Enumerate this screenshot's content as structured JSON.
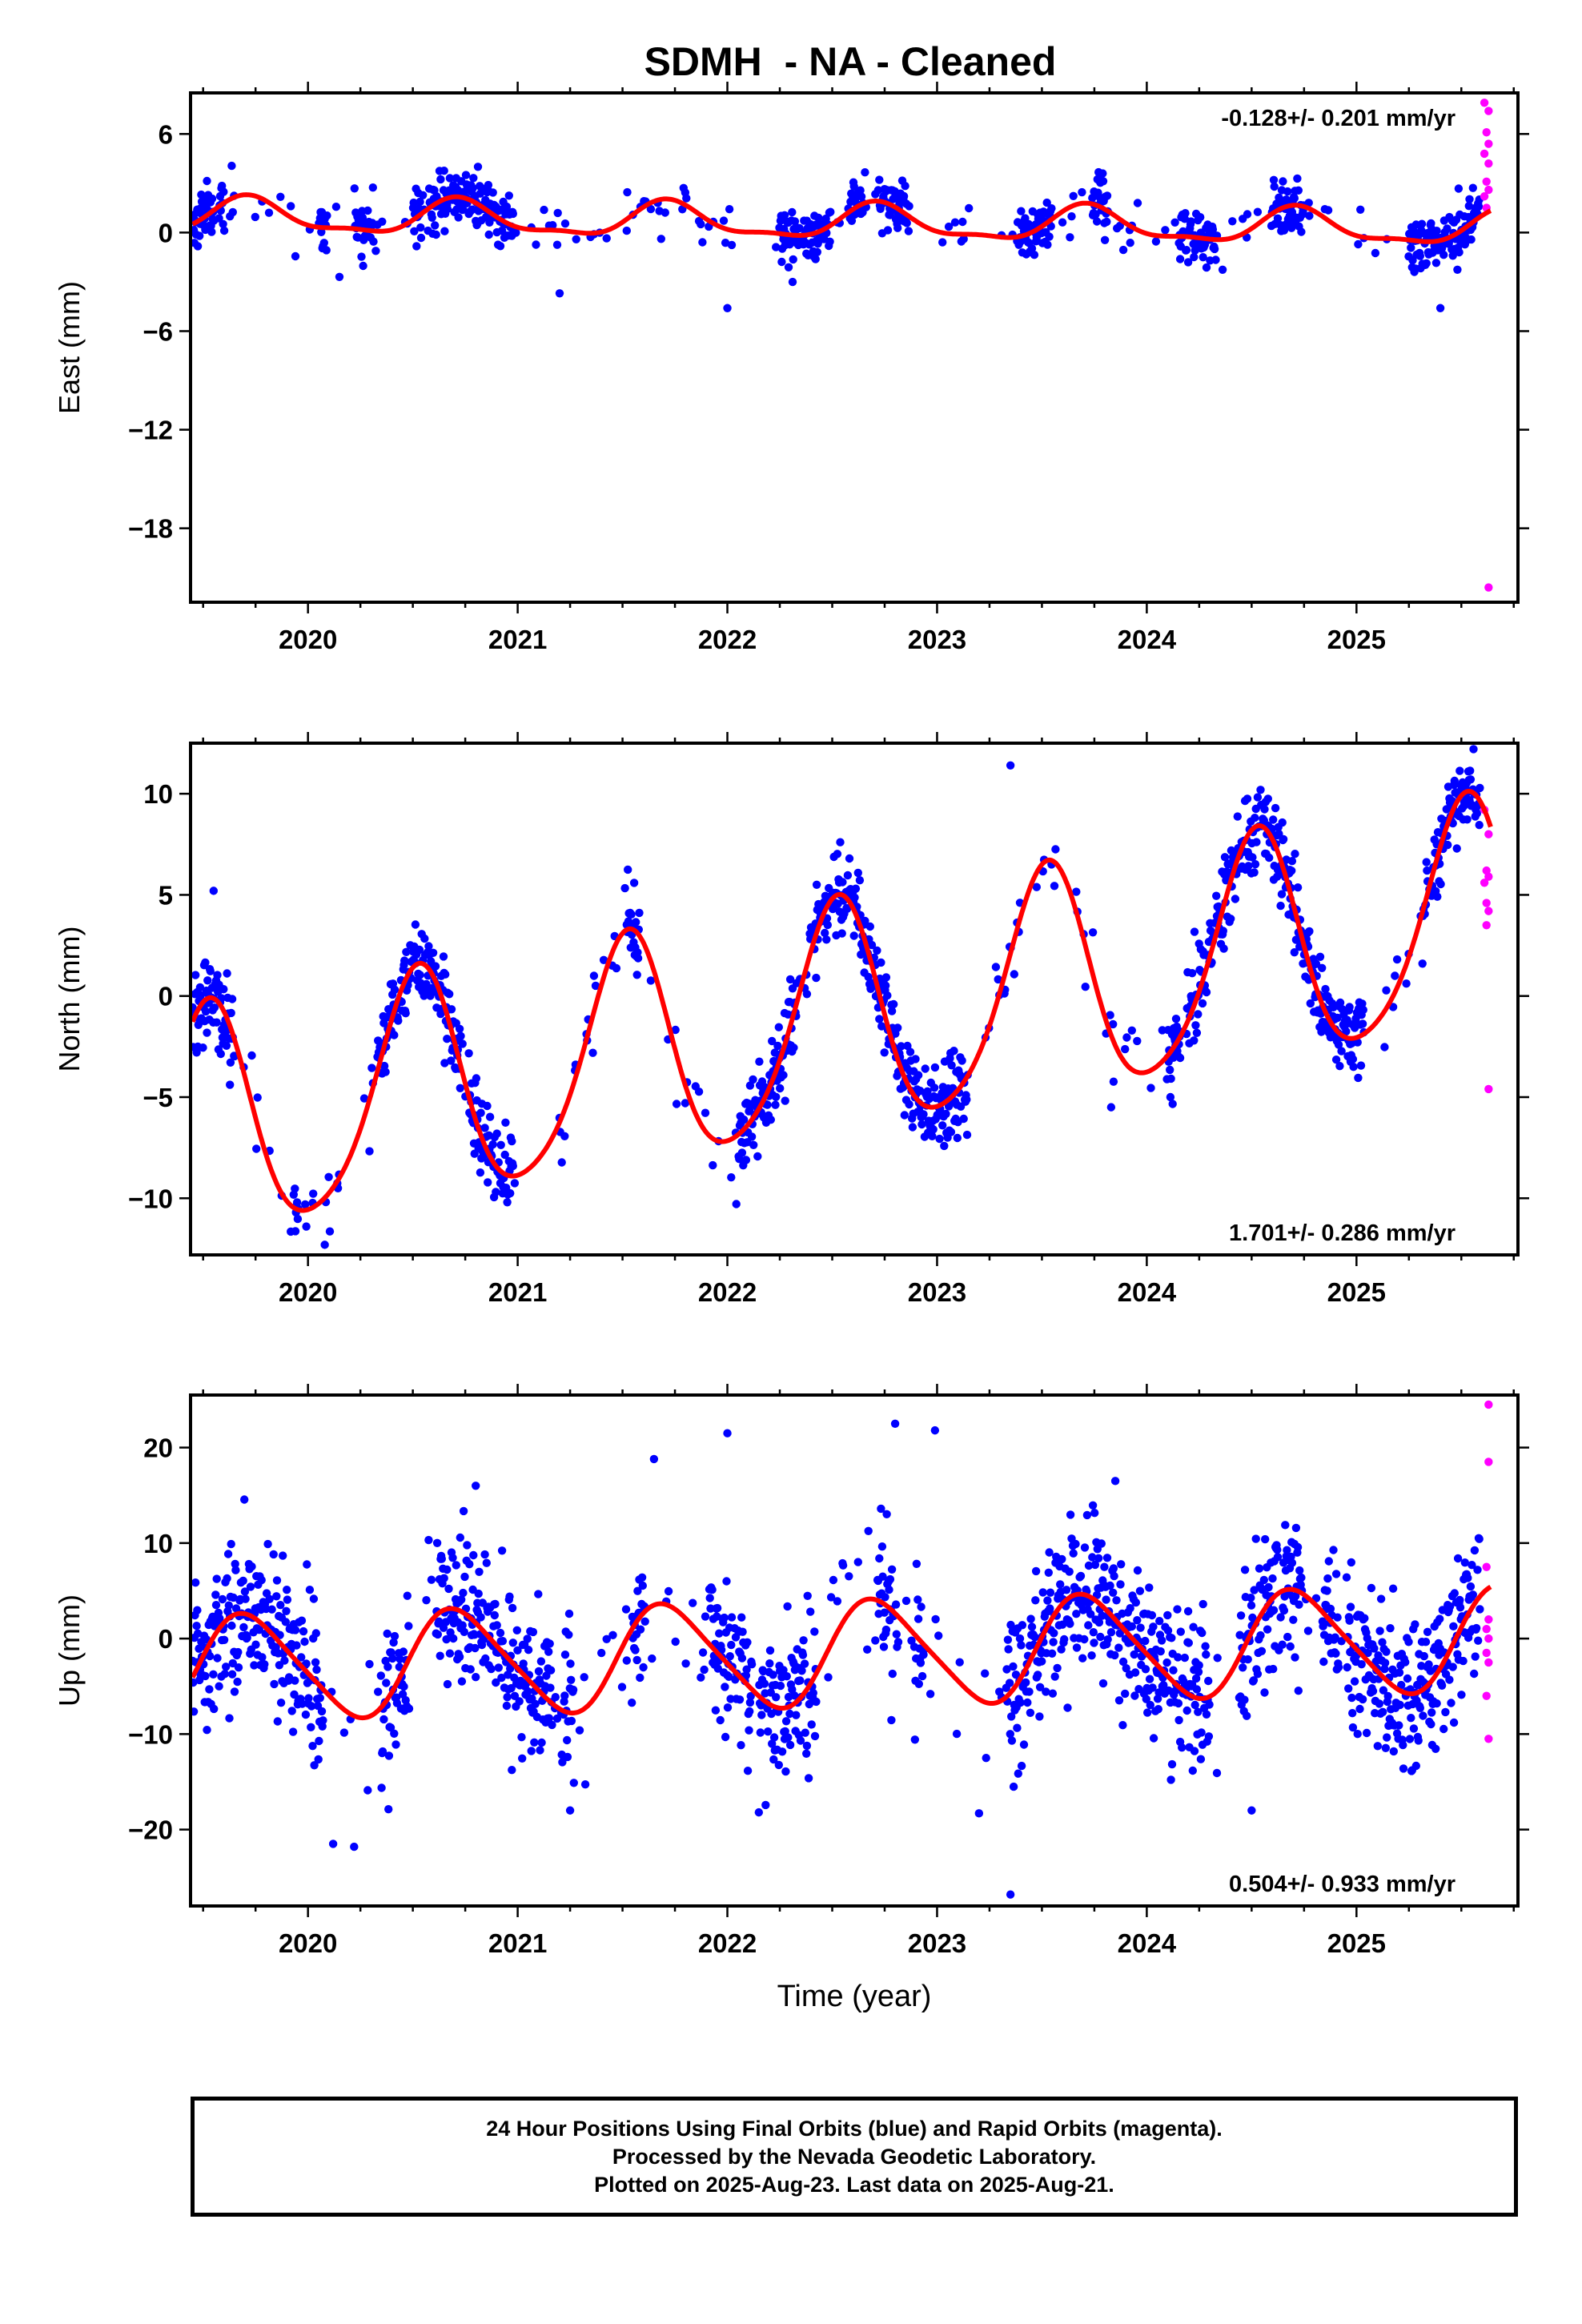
{
  "title": "SDMH  - NA - Cleaned",
  "colors": {
    "final_orbits": "#0000ff",
    "rapid_orbits": "#ff00ff",
    "model_fit": "#ff0000",
    "frame": "#000000"
  },
  "chart_data": [
    {
      "type": "scatter",
      "component": "east",
      "ylabel": "East (mm)",
      "ylim": [
        -22.5,
        8.5
      ],
      "yticks": [
        6,
        0,
        -6,
        -12,
        -18
      ],
      "xlim": [
        2019.44,
        2025.77
      ],
      "xticks": [
        2020,
        2021,
        2022,
        2023,
        2024,
        2025
      ],
      "rate_label": "-0.128+/- 0.201 mm/yr",
      "rate_label_position": "top-right",
      "data_start": 2019.45,
      "data_end": 2025.64,
      "final_orbits_end": 2025.59,
      "fit": {
        "offset": 0.6,
        "rate_mm_per_yr": -0.128,
        "annual": {
          "amp": 1.0,
          "peak": 0.72
        },
        "semiannual": {
          "amp": 0.35,
          "peak": 0.2
        }
      },
      "scatter_sigma": 0.85,
      "outliers": [
        [
          2022.0,
          -4.6
        ],
        [
          2020.15,
          -2.7
        ],
        [
          2021.2,
          -3.7
        ],
        [
          2025.4,
          -4.6
        ]
      ],
      "rapid_orbits": [
        [
          2025.61,
          7.9
        ],
        [
          2025.63,
          7.4
        ],
        [
          2025.62,
          6.1
        ],
        [
          2025.63,
          5.4
        ],
        [
          2025.61,
          4.8
        ],
        [
          2025.63,
          4.2
        ],
        [
          2025.62,
          3.1
        ],
        [
          2025.63,
          2.6
        ],
        [
          2025.61,
          2.2
        ],
        [
          2025.62,
          1.5
        ],
        [
          2025.63,
          -21.6
        ]
      ]
    },
    {
      "type": "scatter",
      "component": "north",
      "ylabel": "North (mm)",
      "ylim": [
        -12.8,
        12.5
      ],
      "yticks": [
        10,
        5,
        0,
        -5,
        -10
      ],
      "xlim": [
        2019.44,
        2025.77
      ],
      "xticks": [
        2020,
        2021,
        2022,
        2023,
        2024,
        2025
      ],
      "rate_label": "1.701+/- 0.286 mm/yr",
      "rate_label_position": "bottom-right",
      "data_start": 2019.45,
      "data_end": 2025.64,
      "final_orbits_end": 2025.59,
      "fit": {
        "offset": -1.4,
        "rate_mm_per_yr": 1.701,
        "annual": {
          "amp": 5.6,
          "peak": 0.52
        },
        "semiannual": {
          "amp": 0.8,
          "peak": 0.05
        }
      },
      "scatter_sigma": 1.0,
      "outliers": [
        [
          2020.08,
          -12.3
        ],
        [
          2023.35,
          11.4
        ],
        [
          2023.83,
          -5.5
        ],
        [
          2019.55,
          5.2
        ]
      ],
      "rapid_orbits": [
        [
          2025.61,
          9.2
        ],
        [
          2025.63,
          8.0
        ],
        [
          2025.62,
          6.2
        ],
        [
          2025.61,
          5.6
        ],
        [
          2025.63,
          5.9
        ],
        [
          2025.62,
          4.6
        ],
        [
          2025.63,
          4.2
        ],
        [
          2025.62,
          3.5
        ],
        [
          2025.63,
          -4.6
        ]
      ]
    },
    {
      "type": "scatter",
      "component": "up",
      "ylabel": "Up (mm)",
      "ylim": [
        -28,
        25.5
      ],
      "yticks": [
        20,
        10,
        0,
        -10,
        -20
      ],
      "xlim": [
        2019.44,
        2025.77
      ],
      "xticks": [
        2020,
        2021,
        2022,
        2023,
        2024,
        2025
      ],
      "xlabel": "Time (year)",
      "rate_label": "0.504+/- 0.933 mm/yr",
      "rate_label_position": "bottom-right",
      "data_start": 2019.45,
      "data_end": 2025.64,
      "final_orbits_end": 2025.59,
      "fit": {
        "offset": -1.6,
        "rate_mm_per_yr": 0.504,
        "annual": {
          "amp": 5.4,
          "peak": 0.72
        },
        "semiannual": {
          "amp": 0.8,
          "peak": 0.1
        }
      },
      "scatter_sigma": 4.0,
      "outliers": [
        [
          2023.35,
          -26.8
        ],
        [
          2022.0,
          21.5
        ],
        [
          2022.8,
          22.5
        ],
        [
          2022.99,
          21.8
        ],
        [
          2020.12,
          -21.5
        ],
        [
          2020.22,
          -21.8
        ],
        [
          2021.25,
          -18.0
        ],
        [
          2022.15,
          -18.2
        ],
        [
          2023.2,
          -18.3
        ],
        [
          2024.5,
          -18.0
        ],
        [
          2023.85,
          16.5
        ],
        [
          2020.8,
          16.0
        ],
        [
          2021.65,
          18.8
        ]
      ],
      "rapid_orbits": [
        [
          2025.63,
          24.5
        ],
        [
          2025.63,
          18.5
        ],
        [
          2025.62,
          7.5
        ],
        [
          2025.63,
          2.0
        ],
        [
          2025.62,
          1.0
        ],
        [
          2025.63,
          0.0
        ],
        [
          2025.62,
          -1.5
        ],
        [
          2025.63,
          -2.5
        ],
        [
          2025.62,
          -6.0
        ],
        [
          2025.63,
          -10.5
        ]
      ]
    }
  ],
  "caption": [
    "24 Hour Positions Using Final Orbits (blue) and Rapid Orbits (magenta).",
    "Processed by the Nevada Geodetic Laboratory.",
    "Plotted on 2025-Aug-23. Last data on 2025-Aug-21."
  ]
}
